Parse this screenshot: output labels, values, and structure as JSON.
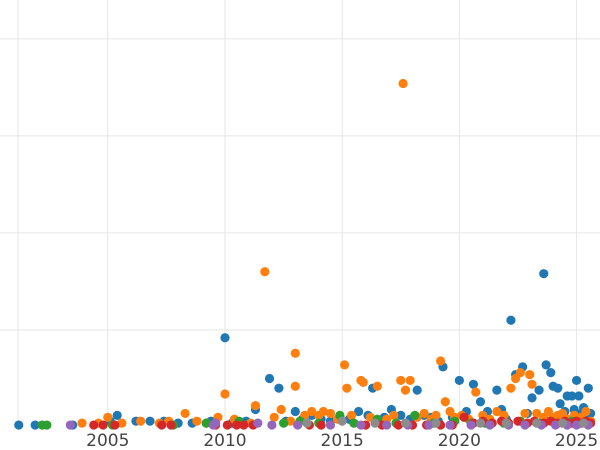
{
  "chart_data": {
    "type": "scatter",
    "title": "",
    "xlabel": "",
    "ylabel": "",
    "xlim": [
      2000.4,
      2026.0
    ],
    "ylim": [
      0,
      22
    ],
    "x_ticks": [
      2005,
      2010,
      2015,
      2020,
      2025
    ],
    "x_tick_labels": [
      "2005",
      "2010",
      "2015",
      "2020",
      "2025"
    ],
    "y_grid_values": [
      5,
      10,
      15,
      20
    ],
    "grid": true,
    "legend": "none",
    "series": [
      {
        "color": "#1f77b4",
        "points": [
          [
            2001.2,
            0.1
          ],
          [
            2001.9,
            0.1
          ],
          [
            2003.5,
            0.1
          ],
          [
            2005.1,
            0.3
          ],
          [
            2005.4,
            0.6
          ],
          [
            2006.2,
            0.3
          ],
          [
            2006.8,
            0.3
          ],
          [
            2007.4,
            0.3
          ],
          [
            2008.0,
            0.2
          ],
          [
            2008.6,
            0.2
          ],
          [
            2009.4,
            0.3
          ],
          [
            2010.0,
            4.6
          ],
          [
            2010.3,
            0.2
          ],
          [
            2010.9,
            0.3
          ],
          [
            2011.3,
            0.9
          ],
          [
            2011.9,
            2.5
          ],
          [
            2012.3,
            2.0
          ],
          [
            2012.6,
            0.3
          ],
          [
            2013.0,
            0.8
          ],
          [
            2013.3,
            0.4
          ],
          [
            2013.7,
            0.6
          ],
          [
            2014.1,
            0.4
          ],
          [
            2014.5,
            0.3
          ],
          [
            2014.9,
            0.5
          ],
          [
            2015.3,
            0.4
          ],
          [
            2015.7,
            0.8
          ],
          [
            2016.1,
            0.6
          ],
          [
            2016.3,
            2.0
          ],
          [
            2016.8,
            0.5
          ],
          [
            2017.1,
            0.9
          ],
          [
            2017.5,
            0.6
          ],
          [
            2017.9,
            0.4
          ],
          [
            2018.2,
            1.9
          ],
          [
            2018.5,
            0.6
          ],
          [
            2018.8,
            0.5
          ],
          [
            2019.1,
            0.3
          ],
          [
            2019.3,
            3.1
          ],
          [
            2019.7,
            0.5
          ],
          [
            2020.0,
            2.4
          ],
          [
            2020.3,
            0.8
          ],
          [
            2020.6,
            2.2
          ],
          [
            2020.9,
            1.3
          ],
          [
            2021.2,
            0.8
          ],
          [
            2021.6,
            1.9
          ],
          [
            2021.8,
            0.9
          ],
          [
            2022.0,
            0.4
          ],
          [
            2022.2,
            5.5
          ],
          [
            2022.4,
            2.7
          ],
          [
            2022.7,
            3.1
          ],
          [
            2022.9,
            0.7
          ],
          [
            2023.1,
            1.5
          ],
          [
            2023.4,
            1.9
          ],
          [
            2023.6,
            7.9
          ],
          [
            2023.7,
            3.2
          ],
          [
            2023.9,
            2.8
          ],
          [
            2024.0,
            2.1
          ],
          [
            2024.2,
            2.0
          ],
          [
            2024.3,
            1.2
          ],
          [
            2024.5,
            0.8
          ],
          [
            2024.6,
            1.6
          ],
          [
            2024.8,
            1.6
          ],
          [
            2024.9,
            0.9
          ],
          [
            2025.0,
            2.4
          ],
          [
            2025.1,
            1.6
          ],
          [
            2025.2,
            0.7
          ],
          [
            2025.3,
            1.0
          ],
          [
            2025.4,
            0.5
          ],
          [
            2025.5,
            2.0
          ],
          [
            2025.6,
            0.7
          ]
        ]
      },
      {
        "color": "#ff7f0e",
        "points": [
          [
            2003.9,
            0.2
          ],
          [
            2004.6,
            0.2
          ],
          [
            2005.0,
            0.5
          ],
          [
            2005.6,
            0.2
          ],
          [
            2006.4,
            0.3
          ],
          [
            2007.2,
            0.2
          ],
          [
            2007.6,
            0.3
          ],
          [
            2008.3,
            0.7
          ],
          [
            2008.8,
            0.3
          ],
          [
            2009.2,
            0.2
          ],
          [
            2009.7,
            0.5
          ],
          [
            2010.0,
            1.7
          ],
          [
            2010.4,
            0.4
          ],
          [
            2011.1,
            0.2
          ],
          [
            2011.3,
            1.1
          ],
          [
            2011.7,
            8.0
          ],
          [
            2012.1,
            0.5
          ],
          [
            2012.4,
            0.9
          ],
          [
            2012.8,
            0.3
          ],
          [
            2013.0,
            3.8
          ],
          [
            2013.0,
            2.1
          ],
          [
            2013.4,
            0.6
          ],
          [
            2013.7,
            0.8
          ],
          [
            2014.0,
            0.6
          ],
          [
            2014.2,
            0.8
          ],
          [
            2014.5,
            0.7
          ],
          [
            2014.8,
            0.4
          ],
          [
            2015.1,
            3.2
          ],
          [
            2015.2,
            2.0
          ],
          [
            2015.4,
            0.6
          ],
          [
            2015.8,
            2.4
          ],
          [
            2015.9,
            2.3
          ],
          [
            2016.2,
            0.5
          ],
          [
            2016.5,
            2.1
          ],
          [
            2016.9,
            0.4
          ],
          [
            2017.2,
            0.6
          ],
          [
            2017.5,
            2.4
          ],
          [
            2017.6,
            17.7
          ],
          [
            2017.7,
            1.9
          ],
          [
            2017.9,
            2.4
          ],
          [
            2018.2,
            0.5
          ],
          [
            2018.5,
            0.7
          ],
          [
            2018.8,
            0.4
          ],
          [
            2019.0,
            0.6
          ],
          [
            2019.2,
            3.4
          ],
          [
            2019.4,
            1.3
          ],
          [
            2019.6,
            0.8
          ],
          [
            2019.8,
            0.5
          ],
          [
            2020.1,
            0.6
          ],
          [
            2020.4,
            0.4
          ],
          [
            2020.7,
            1.8
          ],
          [
            2021.0,
            0.6
          ],
          [
            2021.3,
            0.4
          ],
          [
            2021.6,
            0.8
          ],
          [
            2021.9,
            0.6
          ],
          [
            2022.2,
            2.0
          ],
          [
            2022.4,
            2.5
          ],
          [
            2022.6,
            2.8
          ],
          [
            2022.8,
            0.7
          ],
          [
            2023.0,
            2.7
          ],
          [
            2023.1,
            2.2
          ],
          [
            2023.3,
            0.7
          ],
          [
            2023.6,
            0.5
          ],
          [
            2023.8,
            0.8
          ],
          [
            2024.0,
            0.5
          ],
          [
            2024.2,
            0.6
          ],
          [
            2024.4,
            0.7
          ],
          [
            2024.6,
            0.4
          ],
          [
            2024.9,
            0.6
          ],
          [
            2025.2,
            0.5
          ],
          [
            2025.4,
            0.8
          ],
          [
            2025.6,
            0.3
          ]
        ]
      },
      {
        "color": "#2ca02c",
        "points": [
          [
            2002.2,
            0.1
          ],
          [
            2002.4,
            0.1
          ],
          [
            2005.2,
            0.1
          ],
          [
            2007.8,
            0.1
          ],
          [
            2009.2,
            0.2
          ],
          [
            2010.6,
            0.3
          ],
          [
            2012.5,
            0.2
          ],
          [
            2013.2,
            0.3
          ],
          [
            2014.0,
            0.2
          ],
          [
            2014.9,
            0.6
          ],
          [
            2015.5,
            0.2
          ],
          [
            2016.5,
            0.4
          ],
          [
            2017.3,
            0.2
          ],
          [
            2018.1,
            0.6
          ],
          [
            2018.9,
            0.2
          ],
          [
            2019.8,
            0.3
          ],
          [
            2020.5,
            0.2
          ],
          [
            2021.1,
            0.2
          ],
          [
            2021.9,
            0.2
          ],
          [
            2022.6,
            0.3
          ],
          [
            2023.4,
            0.2
          ],
          [
            2024.1,
            0.2
          ],
          [
            2024.8,
            0.3
          ],
          [
            2025.4,
            0.2
          ]
        ]
      },
      {
        "color": "#d62728",
        "points": [
          [
            2004.4,
            0.1
          ],
          [
            2004.8,
            0.1
          ],
          [
            2005.3,
            0.1
          ],
          [
            2007.3,
            0.1
          ],
          [
            2007.7,
            0.1
          ],
          [
            2009.6,
            0.1
          ],
          [
            2010.1,
            0.1
          ],
          [
            2010.5,
            0.1
          ],
          [
            2010.8,
            0.1
          ],
          [
            2011.2,
            0.1
          ],
          [
            2013.6,
            0.1
          ],
          [
            2014.1,
            0.1
          ],
          [
            2016.0,
            0.1
          ],
          [
            2016.7,
            0.1
          ],
          [
            2017.4,
            0.1
          ],
          [
            2018.0,
            0.1
          ],
          [
            2018.6,
            0.1
          ],
          [
            2019.2,
            0.1
          ],
          [
            2019.7,
            0.1
          ],
          [
            2020.2,
            0.5
          ],
          [
            2020.6,
            0.2
          ],
          [
            2021.0,
            0.3
          ],
          [
            2021.4,
            0.2
          ],
          [
            2021.8,
            0.3
          ],
          [
            2022.1,
            0.2
          ],
          [
            2022.5,
            0.3
          ],
          [
            2022.9,
            0.2
          ],
          [
            2023.2,
            0.3
          ],
          [
            2023.6,
            0.2
          ],
          [
            2023.9,
            0.3
          ],
          [
            2024.2,
            0.2
          ],
          [
            2024.5,
            0.3
          ],
          [
            2024.8,
            0.2
          ],
          [
            2025.0,
            0.3
          ],
          [
            2025.2,
            0.2
          ],
          [
            2025.4,
            0.3
          ],
          [
            2025.6,
            0.2
          ]
        ]
      },
      {
        "color": "#9467bd",
        "points": [
          [
            2003.4,
            0.1
          ],
          [
            2009.5,
            0.1
          ],
          [
            2009.6,
            0.2
          ],
          [
            2011.4,
            0.2
          ],
          [
            2012.0,
            0.1
          ],
          [
            2013.1,
            0.1
          ],
          [
            2014.5,
            0.1
          ],
          [
            2015.8,
            0.1
          ],
          [
            2016.9,
            0.1
          ],
          [
            2017.8,
            0.1
          ],
          [
            2018.7,
            0.1
          ],
          [
            2019.6,
            0.1
          ],
          [
            2020.5,
            0.1
          ],
          [
            2021.3,
            0.1
          ],
          [
            2022.1,
            0.1
          ],
          [
            2022.8,
            0.1
          ],
          [
            2023.5,
            0.1
          ],
          [
            2024.1,
            0.1
          ],
          [
            2024.6,
            0.1
          ],
          [
            2025.0,
            0.1
          ],
          [
            2025.5,
            0.1
          ]
        ]
      },
      {
        "color": "#8c8c8c",
        "points": [
          [
            2013.5,
            0.2
          ],
          [
            2015.0,
            0.3
          ],
          [
            2016.4,
            0.2
          ],
          [
            2017.7,
            0.2
          ],
          [
            2019.0,
            0.2
          ],
          [
            2020.9,
            0.2
          ],
          [
            2022.0,
            0.2
          ],
          [
            2023.3,
            0.2
          ],
          [
            2024.4,
            0.2
          ],
          [
            2025.3,
            0.2
          ]
        ]
      }
    ]
  }
}
